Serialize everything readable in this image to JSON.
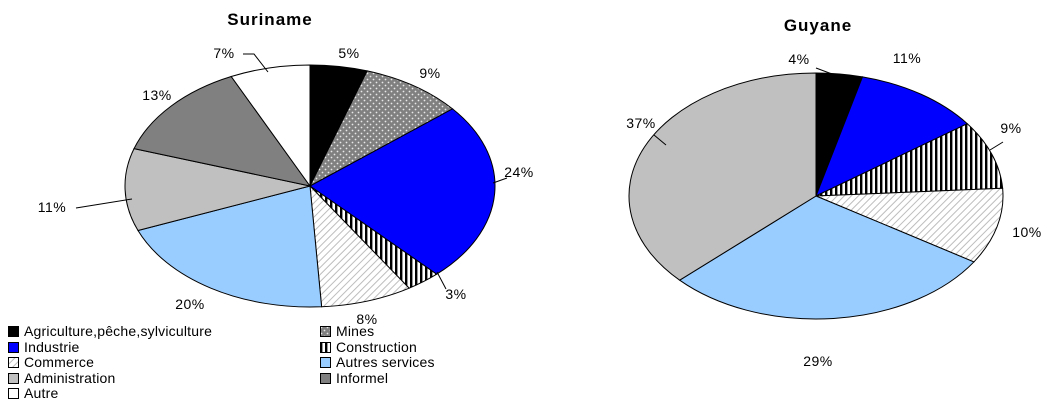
{
  "chart_data": [
    {
      "type": "pie",
      "title": "Suriname",
      "categories": [
        "Agriculture,pêche,sylviculture",
        "Mines",
        "Industrie",
        "Construction",
        "Commerce",
        "Autres services",
        "Administration",
        "Informel",
        "Autre"
      ],
      "values": [
        5,
        9,
        24,
        3,
        8,
        20,
        11,
        13,
        7
      ],
      "labels": [
        "5%",
        "9%",
        "24%",
        "3%",
        "8%",
        "20%",
        "11%",
        "13%",
        "7%"
      ]
    },
    {
      "type": "pie",
      "title": "Guyane",
      "categories": [
        "Agriculture,pêche,sylviculture",
        "Industrie",
        "Construction",
        "Commerce",
        "Autres services",
        "Administration"
      ],
      "values": [
        4,
        11,
        9,
        10,
        29,
        37
      ],
      "labels": [
        "4%",
        "11%",
        "9%",
        "10%",
        "29%",
        "37%"
      ]
    }
  ],
  "legend": {
    "items": [
      {
        "label": "Agriculture,pêche,sylviculture",
        "color": "#000000",
        "pattern": "solid"
      },
      {
        "label": "Mines",
        "color": "#808080",
        "pattern": "dots"
      },
      {
        "label": "Industrie",
        "color": "#0000ff",
        "pattern": "solid"
      },
      {
        "label": "Construction",
        "color": "#ffffff",
        "pattern": "vertical-stripes"
      },
      {
        "label": "Commerce",
        "color": "#ffffff",
        "pattern": "diagonal-hatch"
      },
      {
        "label": "Autres services",
        "color": "#99ccff",
        "pattern": "solid"
      },
      {
        "label": "Administration",
        "color": "#c0c0c0",
        "pattern": "solid"
      },
      {
        "label": "Informel",
        "color": "#808080",
        "pattern": "solid"
      },
      {
        "label": "Autre",
        "color": "#ffffff",
        "pattern": "solid"
      }
    ]
  }
}
